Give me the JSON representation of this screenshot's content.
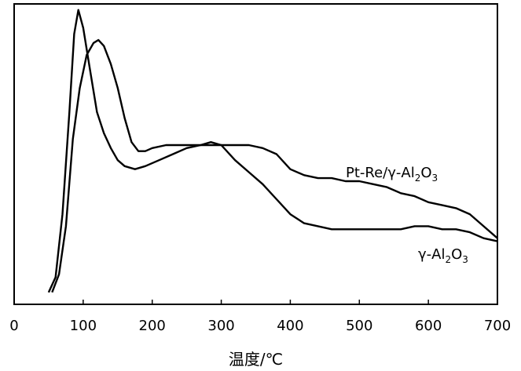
{
  "chart_data": {
    "type": "line",
    "xlabel": "温度/℃",
    "ylabel": "",
    "title": "",
    "xlim": [
      0,
      700
    ],
    "ylim": [
      0,
      100
    ],
    "x_ticks": [
      0,
      100,
      200,
      300,
      400,
      500,
      600,
      700
    ],
    "grid": false,
    "y_ticks_shown": false,
    "series": [
      {
        "name": "Pt-Re/γ-Al₂O₃",
        "label_main": "Pt-Re/γ-Al",
        "label_sub": "2",
        "label_tail": "O",
        "label_sub2": "3",
        "x": [
          55,
          65,
          75,
          85,
          95,
          105,
          115,
          122,
          130,
          140,
          150,
          160,
          170,
          180,
          190,
          200,
          220,
          250,
          280,
          300,
          320,
          340,
          360,
          380,
          400,
          420,
          440,
          460,
          480,
          500,
          520,
          540,
          560,
          580,
          600,
          620,
          640,
          660,
          680,
          700
        ],
        "values": [
          4,
          10,
          26,
          55,
          72,
          83,
          87,
          88,
          86,
          80,
          72,
          62,
          54,
          51,
          51,
          52,
          53,
          53,
          53,
          53,
          53,
          53,
          52,
          50,
          45,
          43,
          42,
          42,
          41,
          41,
          40,
          39,
          37,
          36,
          34,
          33,
          32,
          30,
          26,
          22
        ]
      },
      {
        "name": "γ-Al₂O₃",
        "label_main": "γ-Al",
        "label_sub": "2",
        "label_tail": "O",
        "label_sub2": "3",
        "x": [
          50,
          60,
          70,
          80,
          87,
          93,
          100,
          110,
          120,
          130,
          140,
          150,
          160,
          175,
          190,
          210,
          230,
          250,
          270,
          285,
          300,
          320,
          340,
          360,
          380,
          400,
          420,
          440,
          460,
          480,
          500,
          520,
          540,
          560,
          580,
          600,
          620,
          640,
          660,
          680,
          700
        ],
        "values": [
          4,
          9,
          30,
          64,
          90,
          98,
          92,
          78,
          64,
          57,
          52,
          48,
          46,
          45,
          46,
          48,
          50,
          52,
          53,
          54,
          53,
          48,
          44,
          40,
          35,
          30,
          27,
          26,
          25,
          25,
          25,
          25,
          25,
          25,
          26,
          26,
          25,
          25,
          24,
          22,
          21
        ]
      }
    ]
  }
}
